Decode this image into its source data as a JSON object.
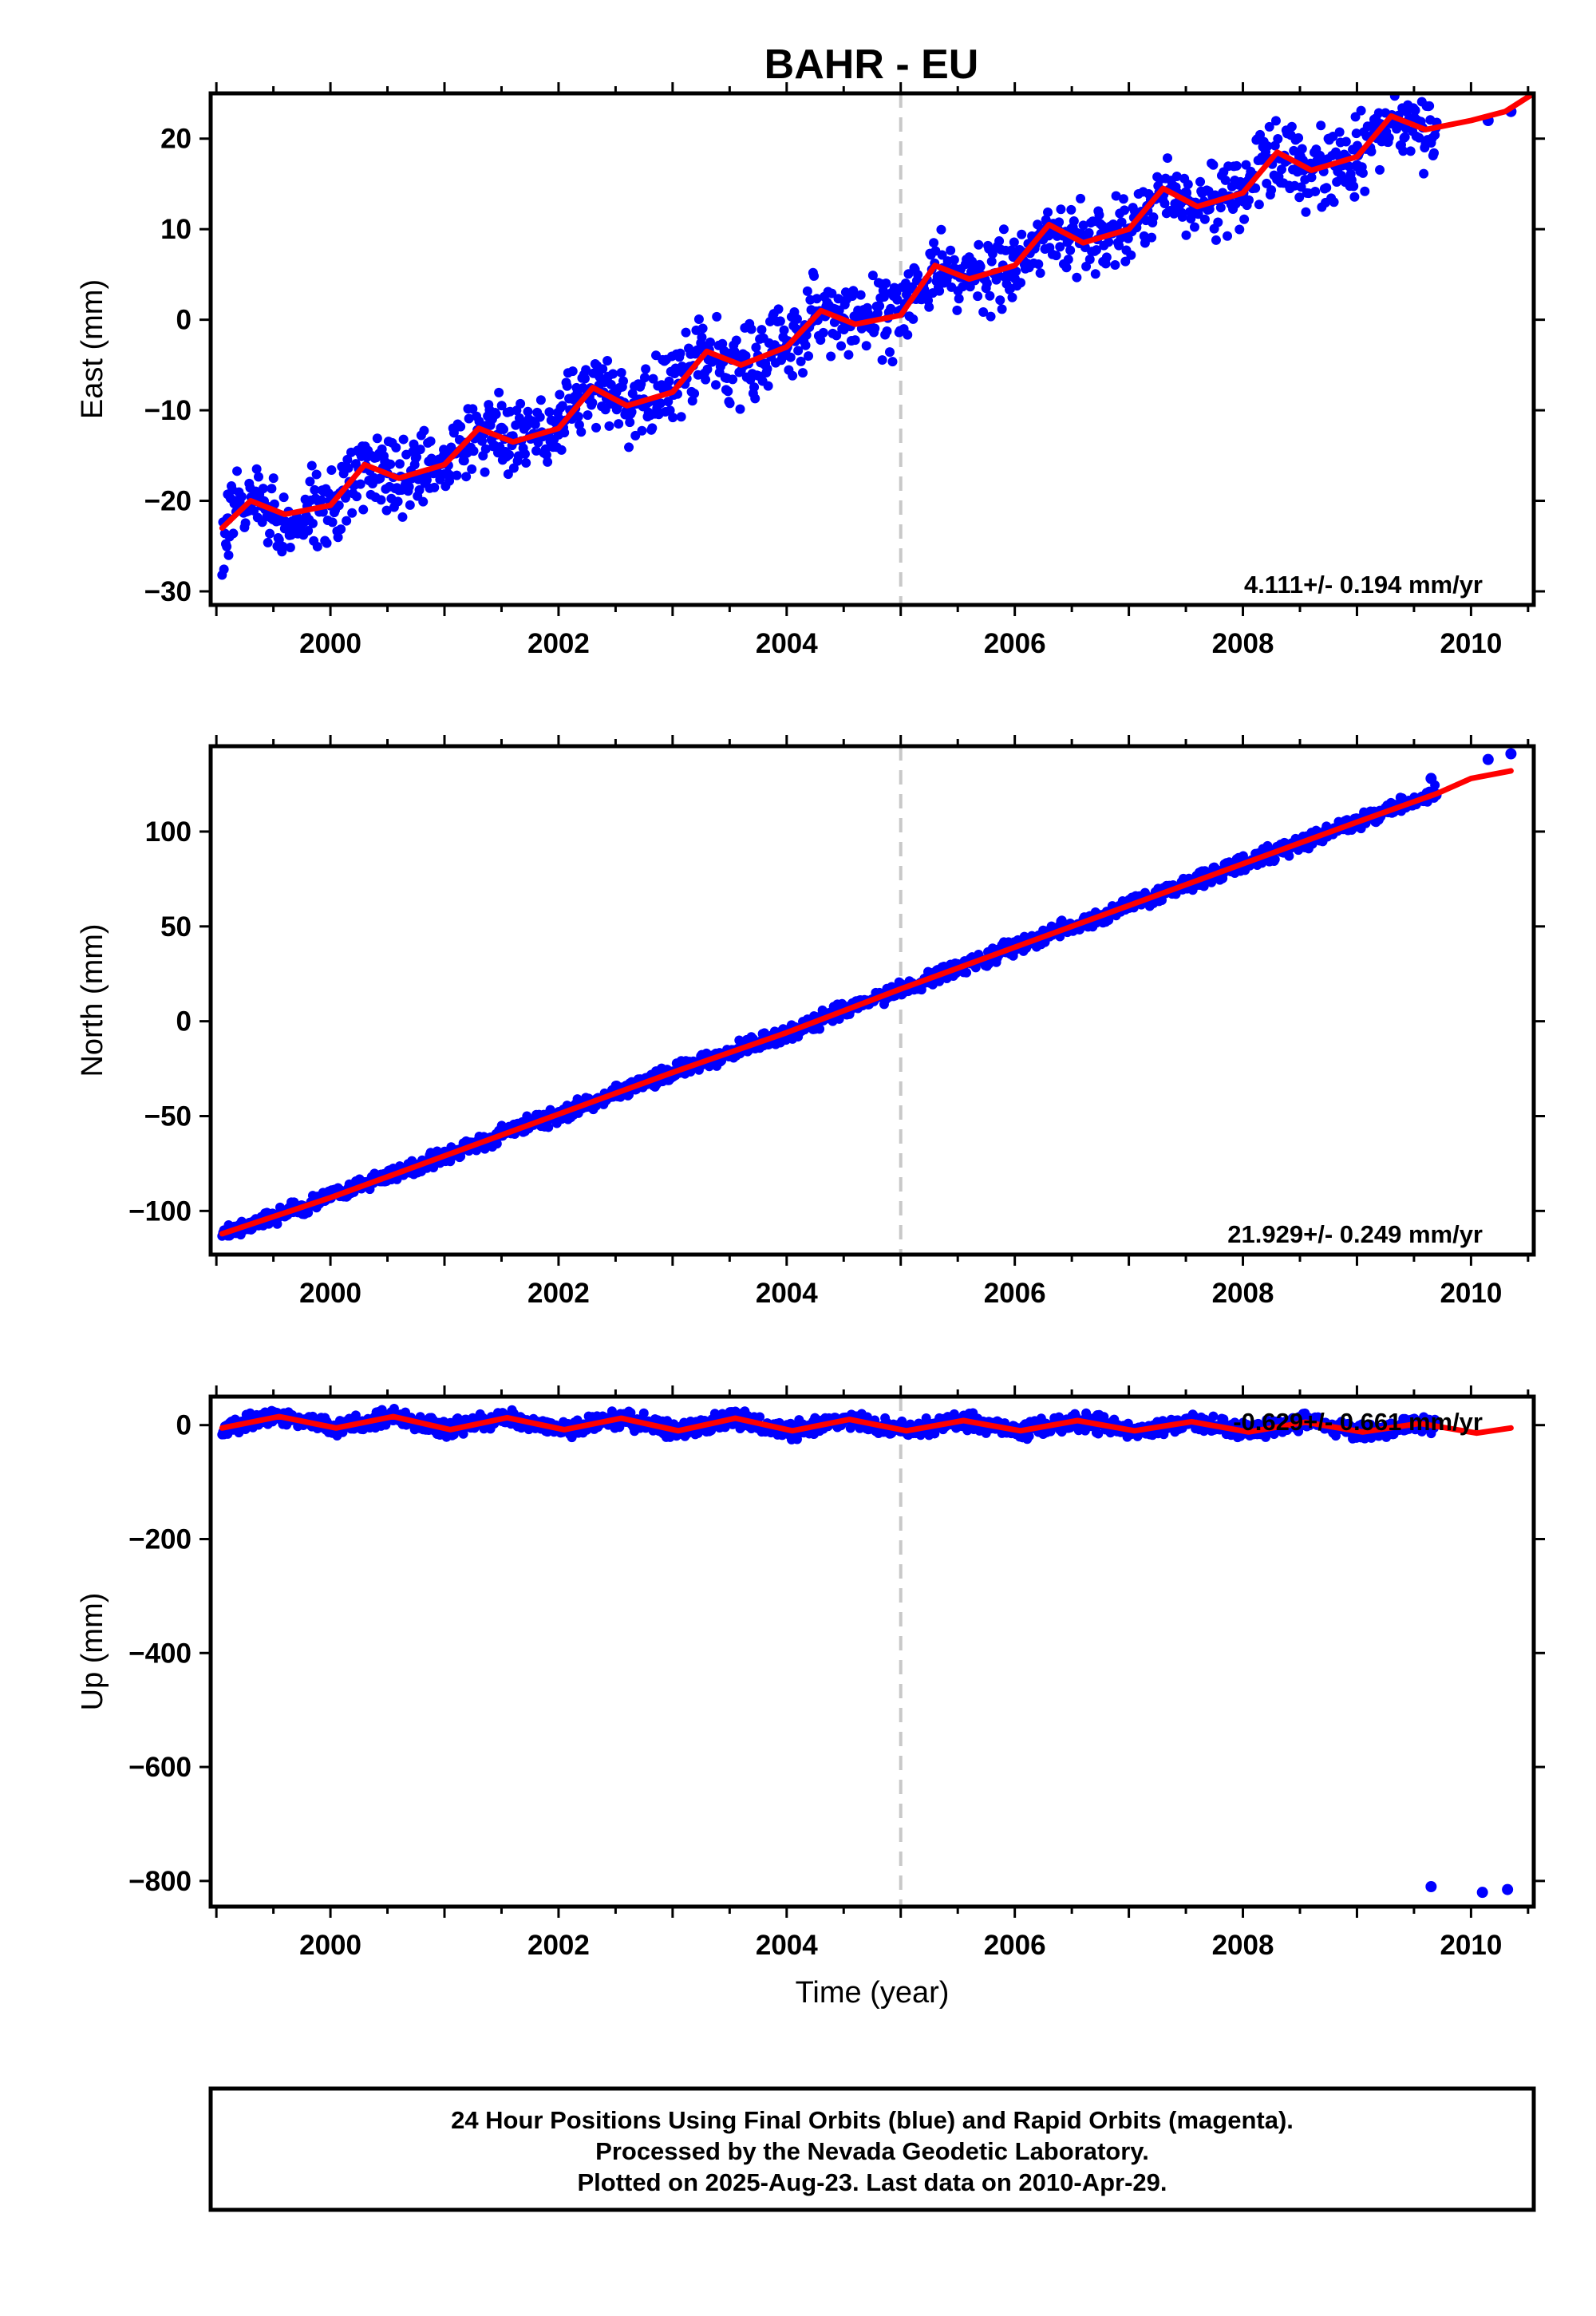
{
  "colors": {
    "points": "#0000ff",
    "model": "#ff0000",
    "marker_line": "#c8c8c8",
    "frame": "#000000"
  },
  "chart_data": {
    "type": "scatter",
    "title": "BAHR - EU",
    "xlabel": "Time (year)",
    "xlim": [
      1998.95,
      2010.55
    ],
    "x_ticks": [
      "2000",
      "2002",
      "2004",
      "2006",
      "2008",
      "2010"
    ],
    "vertical_marker_x": 2005.0,
    "data_start": 1999.05,
    "data_end": 2009.7,
    "panels": [
      {
        "component": "east",
        "ylabel": "East (mm)",
        "ylim": [
          -31.5,
          25
        ],
        "y_ticks": [
          "20",
          "10",
          "0",
          "-10",
          "-20",
          "-30"
        ],
        "rate_label": "4.111+/- 0.194 mm/yr",
        "series": [
          {
            "name": "Final Orbits (blue)",
            "color": "#0000ff",
            "x": [
              1999.1,
              1999.5,
              2000.0,
              2000.5,
              2001.0,
              2001.5,
              2002.0,
              2002.5,
              2003.0,
              2003.5,
              2004.0,
              2004.5,
              2005.0,
              2005.5,
              2006.0,
              2006.5,
              2007.0,
              2007.5,
              2008.0,
              2008.5,
              2009.0,
              2009.5,
              2010.15,
              2010.35
            ],
            "y": [
              -22,
              -22,
              -20,
              -16,
              -15,
              -12,
              -11,
              -8,
              -8,
              -4,
              -3,
              0,
              1,
              5,
              7,
              10,
              10,
              14,
              14,
              18,
              17,
              22,
              22,
              23
            ]
          },
          {
            "name": "Model fit",
            "color": "#ff0000",
            "x": [
              1999.05,
              1999.3,
              1999.6,
              2000.0,
              2000.3,
              2000.6,
              2001.0,
              2001.3,
              2001.6,
              2002.0,
              2002.3,
              2002.6,
              2003.0,
              2003.3,
              2003.6,
              2004.0,
              2004.3,
              2004.6,
              2005.0,
              2005.3,
              2005.6,
              2006.0,
              2006.3,
              2006.6,
              2007.0,
              2007.3,
              2007.6,
              2008.0,
              2008.3,
              2008.6,
              2009.0,
              2009.3,
              2009.6,
              2010.0,
              2010.3,
              2010.55
            ],
            "y": [
              -23,
              -20,
              -21.5,
              -20.5,
              -16,
              -17.5,
              -16,
              -12,
              -13.5,
              -12,
              -7.5,
              -9.5,
              -8,
              -3.5,
              -5,
              -3,
              1,
              -0.5,
              0.5,
              6,
              4.5,
              6,
              10.5,
              8.5,
              10,
              14.5,
              12.5,
              14,
              18.5,
              16.5,
              18,
              22.5,
              21,
              22,
              23,
              25
            ]
          }
        ]
      },
      {
        "component": "north",
        "ylabel": "North (mm)",
        "ylim": [
          -123,
          145
        ],
        "y_ticks": [
          "100",
          "50",
          "0",
          "-50",
          "-100"
        ],
        "rate_label": "21.929+/- 0.249 mm/yr",
        "series": [
          {
            "name": "Final Orbits (blue)",
            "color": "#0000ff",
            "x": [
              1999.1,
              2000.0,
              2001.0,
              2002.0,
              2003.0,
              2004.0,
              2005.0,
              2006.0,
              2007.0,
              2008.0,
              2009.0,
              2009.65,
              2010.15,
              2010.35
            ],
            "y": [
              -112,
              -93,
              -72,
              -49,
              -29,
              -7,
              16,
              38,
              60,
              82,
              103,
              128,
              138,
              141
            ]
          },
          {
            "name": "Model fit",
            "color": "#ff0000",
            "x": [
              1999.05,
              2000.0,
              2001.0,
              2002.0,
              2003.0,
              2004.0,
              2005.0,
              2006.0,
              2007.0,
              2008.0,
              2009.0,
              2009.7,
              2010.0,
              2010.35
            ],
            "y": [
              -112,
              -93,
              -71,
              -49,
              -27,
              -6,
              17,
              39,
              61,
              83,
              105,
              120,
              128,
              132
            ]
          }
        ]
      },
      {
        "component": "up",
        "ylabel": "Up (mm)",
        "ylim": [
          -845,
          50
        ],
        "y_ticks": [
          "0",
          "-200",
          "-400",
          "-600",
          "-800"
        ],
        "rate_label": "-0.629+/- 0.661 mm/yr",
        "series": [
          {
            "name": "Final Orbits (blue)",
            "color": "#0000ff",
            "x": [
              1999.1,
              1999.6,
              2000.0,
              2000.5,
              2001.0,
              2001.5,
              2002.0,
              2002.5,
              2003.0,
              2003.5,
              2004.0,
              2004.5,
              2005.0,
              2005.5,
              2006.0,
              2006.5,
              2007.0,
              2007.5,
              2008.0,
              2008.5,
              2009.0,
              2009.5,
              2009.65,
              2010.1,
              2010.32
            ],
            "y": [
              -5,
              15,
              -5,
              15,
              -10,
              15,
              -10,
              12,
              -15,
              15,
              -12,
              12,
              -10,
              10,
              -8,
              10,
              -10,
              10,
              -12,
              10,
              -15,
              5,
              -810,
              -820,
              -815
            ]
          },
          {
            "name": "Model fit",
            "color": "#ff0000",
            "x": [
              1999.05,
              1999.55,
              2000.05,
              2000.55,
              2001.05,
              2001.55,
              2002.05,
              2002.55,
              2003.05,
              2003.55,
              2004.05,
              2004.55,
              2005.05,
              2005.55,
              2006.05,
              2006.55,
              2007.05,
              2007.55,
              2008.05,
              2008.55,
              2009.05,
              2009.55,
              2010.05,
              2010.35
            ],
            "y": [
              -5,
              15,
              -5,
              15,
              -8,
              13,
              -8,
              12,
              -10,
              12,
              -10,
              10,
              -10,
              8,
              -10,
              8,
              -10,
              6,
              -12,
              5,
              -12,
              3,
              -14,
              -5
            ]
          }
        ]
      }
    ],
    "footer": [
      "24 Hour Positions Using Final Orbits (blue) and Rapid Orbits (magenta).",
      "Processed by the Nevada Geodetic Laboratory.",
      "Plotted on 2025-Aug-23. Last data on 2010-Apr-29."
    ]
  }
}
